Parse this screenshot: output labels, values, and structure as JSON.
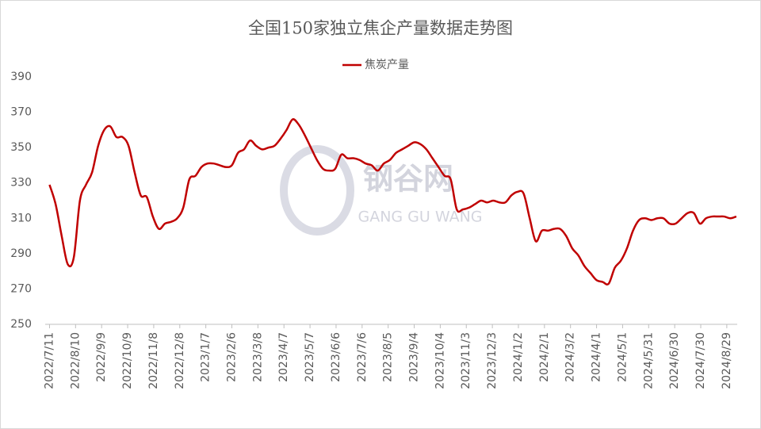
{
  "chart_data": {
    "type": "line",
    "title": "全国150家独立焦企产量数据走势图",
    "watermark": {
      "cn": "钢谷网",
      "en": "GANG GU WANG"
    },
    "legend": "top",
    "grid": false,
    "x": [
      "2022/7/11",
      "2022/7/18",
      "2022/7/25",
      "2022/8/1",
      "2022/8/8",
      "2022/8/15",
      "2022/8/22",
      "2022/8/29",
      "2022/9/5",
      "2022/9/12",
      "2022/9/19",
      "2022/9/26",
      "2022/10/3",
      "2022/10/10",
      "2022/10/17",
      "2022/10/24",
      "2022/10/31",
      "2022/11/7",
      "2022/11/14",
      "2022/11/21",
      "2022/11/28",
      "2022/12/5",
      "2022/12/12",
      "2022/12/19",
      "2022/12/26",
      "2023/1/2",
      "2023/1/9",
      "2023/1/16",
      "2023/1/23",
      "2023/1/30",
      "2023/2/6",
      "2023/2/13",
      "2023/2/20",
      "2023/2/27",
      "2023/3/6",
      "2023/3/13",
      "2023/3/20",
      "2023/3/27",
      "2023/4/3",
      "2023/4/10",
      "2023/4/17",
      "2023/4/24",
      "2023/5/1",
      "2023/5/8",
      "2023/5/15",
      "2023/5/22",
      "2023/5/29",
      "2023/6/5",
      "2023/6/12",
      "2023/6/19",
      "2023/6/26",
      "2023/7/3",
      "2023/7/10",
      "2023/7/17",
      "2023/7/24",
      "2023/7/31",
      "2023/8/7",
      "2023/8/14",
      "2023/8/21",
      "2023/8/28",
      "2023/9/4",
      "2023/9/11",
      "2023/9/18",
      "2023/9/25",
      "2023/10/2",
      "2023/10/9",
      "2023/10/16",
      "2023/10/23",
      "2023/10/30",
      "2023/11/6",
      "2023/11/13",
      "2023/11/20",
      "2023/11/27",
      "2023/12/4",
      "2023/12/11",
      "2023/12/18",
      "2023/12/25",
      "2024/1/1",
      "2024/1/8",
      "2024/1/15",
      "2024/1/22",
      "2024/1/29",
      "2024/2/5",
      "2024/2/12",
      "2024/2/19",
      "2024/2/26",
      "2024/3/4",
      "2024/3/11",
      "2024/3/18",
      "2024/3/25",
      "2024/4/1",
      "2024/4/8",
      "2024/4/15",
      "2024/4/22",
      "2024/4/29",
      "2024/5/6",
      "2024/5/13",
      "2024/5/20",
      "2024/5/27",
      "2024/6/3",
      "2024/6/10",
      "2024/6/17",
      "2024/6/24",
      "2024/7/1",
      "2024/7/8",
      "2024/7/15",
      "2024/7/22",
      "2024/7/29",
      "2024/8/5",
      "2024/8/12",
      "2024/8/19",
      "2024/8/26",
      "2024/9/2",
      "2024/9/9"
    ],
    "series": [
      {
        "name": "焦炭产量",
        "color": "#c00000",
        "values": [
          329,
          318,
          300,
          284,
          288,
          320,
          329,
          336,
          351,
          360,
          362,
          356,
          356,
          351,
          336,
          323,
          322,
          311,
          304,
          307,
          308,
          310,
          316,
          332,
          334,
          339,
          341,
          341,
          340,
          339,
          340,
          347,
          349,
          354,
          351,
          349,
          350,
          351,
          355,
          360,
          366,
          363,
          357,
          350,
          343,
          338,
          337,
          338,
          346,
          344,
          344,
          343,
          341,
          340,
          337,
          341,
          343,
          347,
          349,
          351,
          353,
          352,
          349,
          344,
          339,
          334,
          332,
          315,
          315,
          316,
          318,
          320,
          319,
          320,
          319,
          319,
          323,
          325,
          324,
          310,
          297,
          303,
          303,
          304,
          304,
          300,
          293,
          289,
          283,
          279,
          275,
          274,
          273,
          282,
          286,
          293,
          303,
          309,
          310,
          309,
          310,
          310,
          307,
          307,
          310,
          313,
          313,
          307,
          310,
          311,
          311,
          311,
          310,
          311
        ]
      }
    ],
    "xlim": [
      "2022/7/6",
      "2024/9/10"
    ],
    "xticks": [
      "2022/7/11",
      "2022/8/10",
      "2022/9/9",
      "2022/10/9",
      "2022/11/8",
      "2022/12/8",
      "2023/1/7",
      "2023/2/6",
      "2023/3/8",
      "2023/4/7",
      "2023/5/7",
      "2023/6/6",
      "2023/7/6",
      "2023/8/5",
      "2023/9/4",
      "2023/10/4",
      "2023/11/3",
      "2023/12/3",
      "2024/1/2",
      "2024/2/1",
      "2024/3/2",
      "2024/4/1",
      "2024/5/1",
      "2024/5/31",
      "2024/6/30",
      "2024/7/30",
      "2024/8/29"
    ],
    "ylim": [
      250,
      390
    ],
    "yticks": [
      250,
      270,
      290,
      310,
      330,
      350,
      370,
      390
    ]
  }
}
